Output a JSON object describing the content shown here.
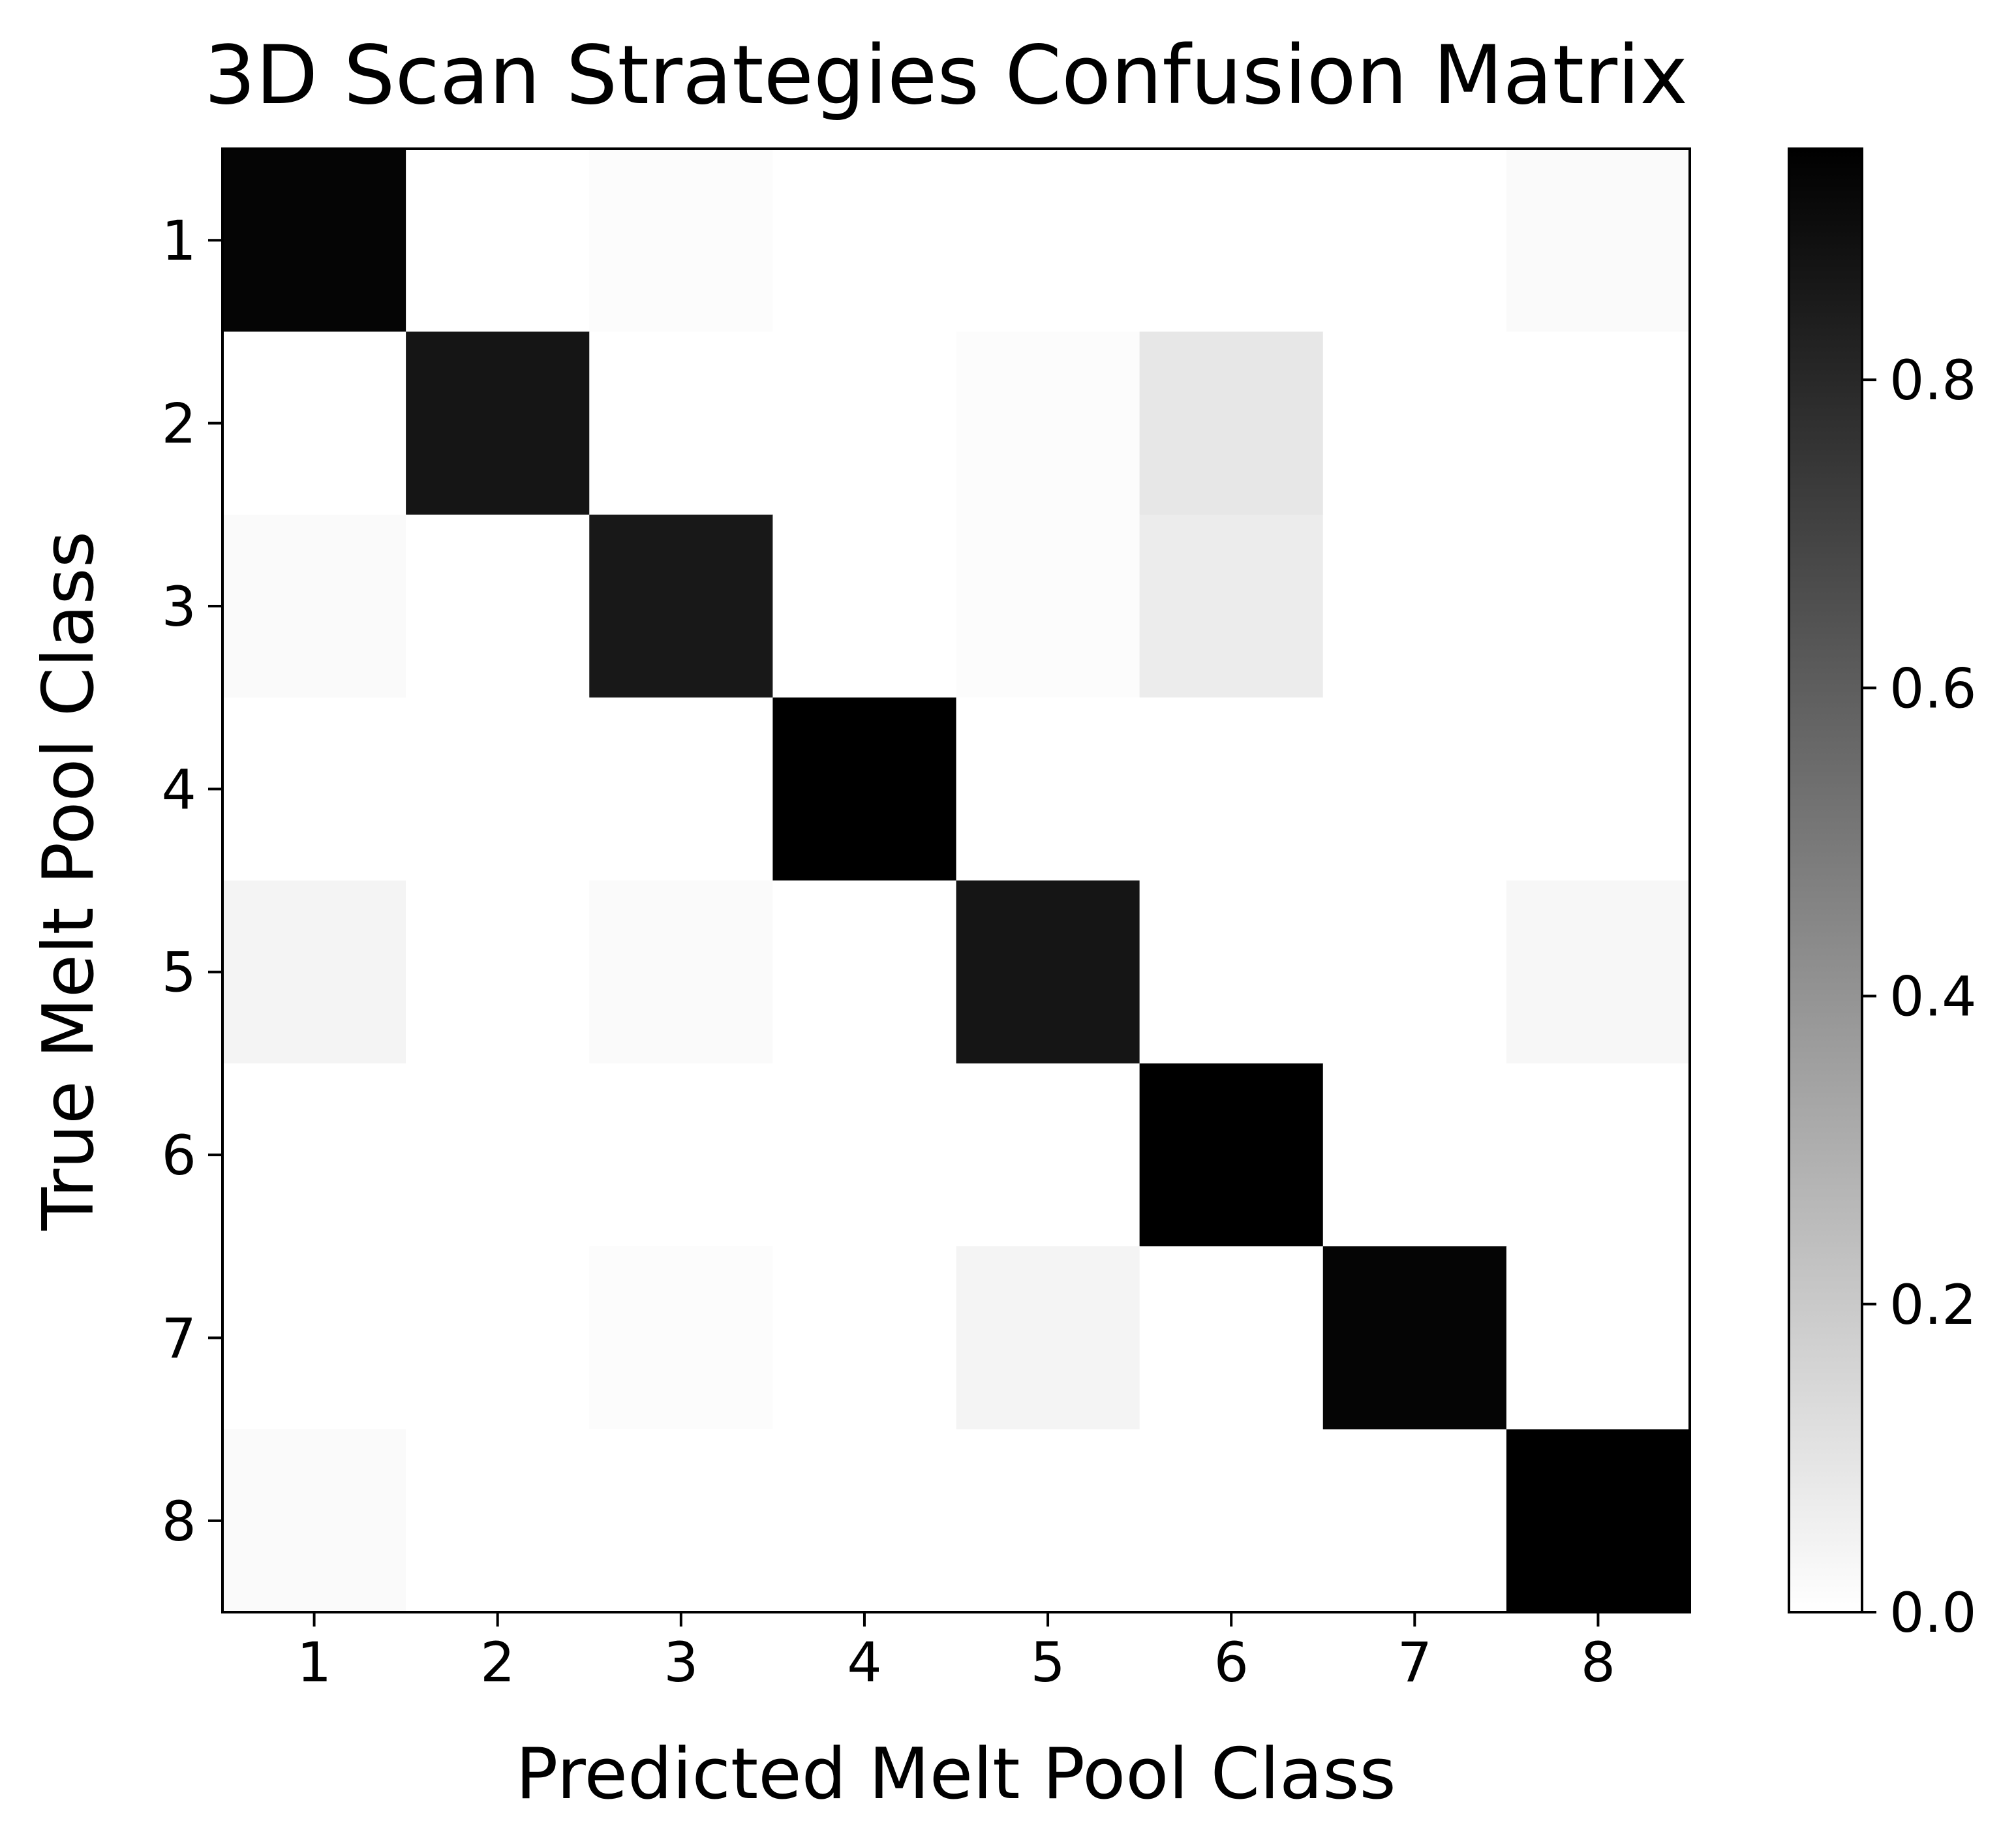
{
  "chart_data": {
    "type": "heatmap",
    "title": "3D Scan Strategies Confusion Matrix",
    "xlabel": "Predicted Melt Pool Class",
    "ylabel": "True Melt Pool Class",
    "x_categories": [
      "1",
      "2",
      "3",
      "4",
      "5",
      "6",
      "7",
      "8"
    ],
    "y_categories": [
      "1",
      "2",
      "3",
      "4",
      "5",
      "6",
      "7",
      "8"
    ],
    "matrix": [
      [
        0.93,
        0.0,
        0.01,
        0.0,
        0.0,
        0.0,
        0.0,
        0.02
      ],
      [
        0.0,
        0.87,
        0.0,
        0.0,
        0.01,
        0.09,
        0.0,
        0.0
      ],
      [
        0.02,
        0.0,
        0.86,
        0.0,
        0.01,
        0.07,
        0.0,
        0.0
      ],
      [
        0.0,
        0.0,
        0.0,
        1.0,
        0.0,
        0.0,
        0.0,
        0.0
      ],
      [
        0.04,
        0.0,
        0.02,
        0.0,
        0.87,
        0.0,
        0.0,
        0.03
      ],
      [
        0.0,
        0.0,
        0.0,
        0.0,
        0.0,
        0.99,
        0.0,
        0.0
      ],
      [
        0.0,
        0.0,
        0.01,
        0.0,
        0.04,
        0.0,
        0.93,
        0.0
      ],
      [
        0.02,
        0.0,
        0.0,
        0.0,
        0.0,
        0.0,
        0.0,
        0.95
      ]
    ],
    "colormap": "gray_r",
    "colorbar": {
      "range": [
        0.0,
        0.95
      ],
      "ticks": [
        0.0,
        0.2,
        0.4,
        0.6,
        0.8
      ],
      "tick_labels": [
        "0.0",
        "0.2",
        "0.4",
        "0.6",
        "0.8"
      ]
    },
    "grid": false,
    "legend": "none"
  }
}
